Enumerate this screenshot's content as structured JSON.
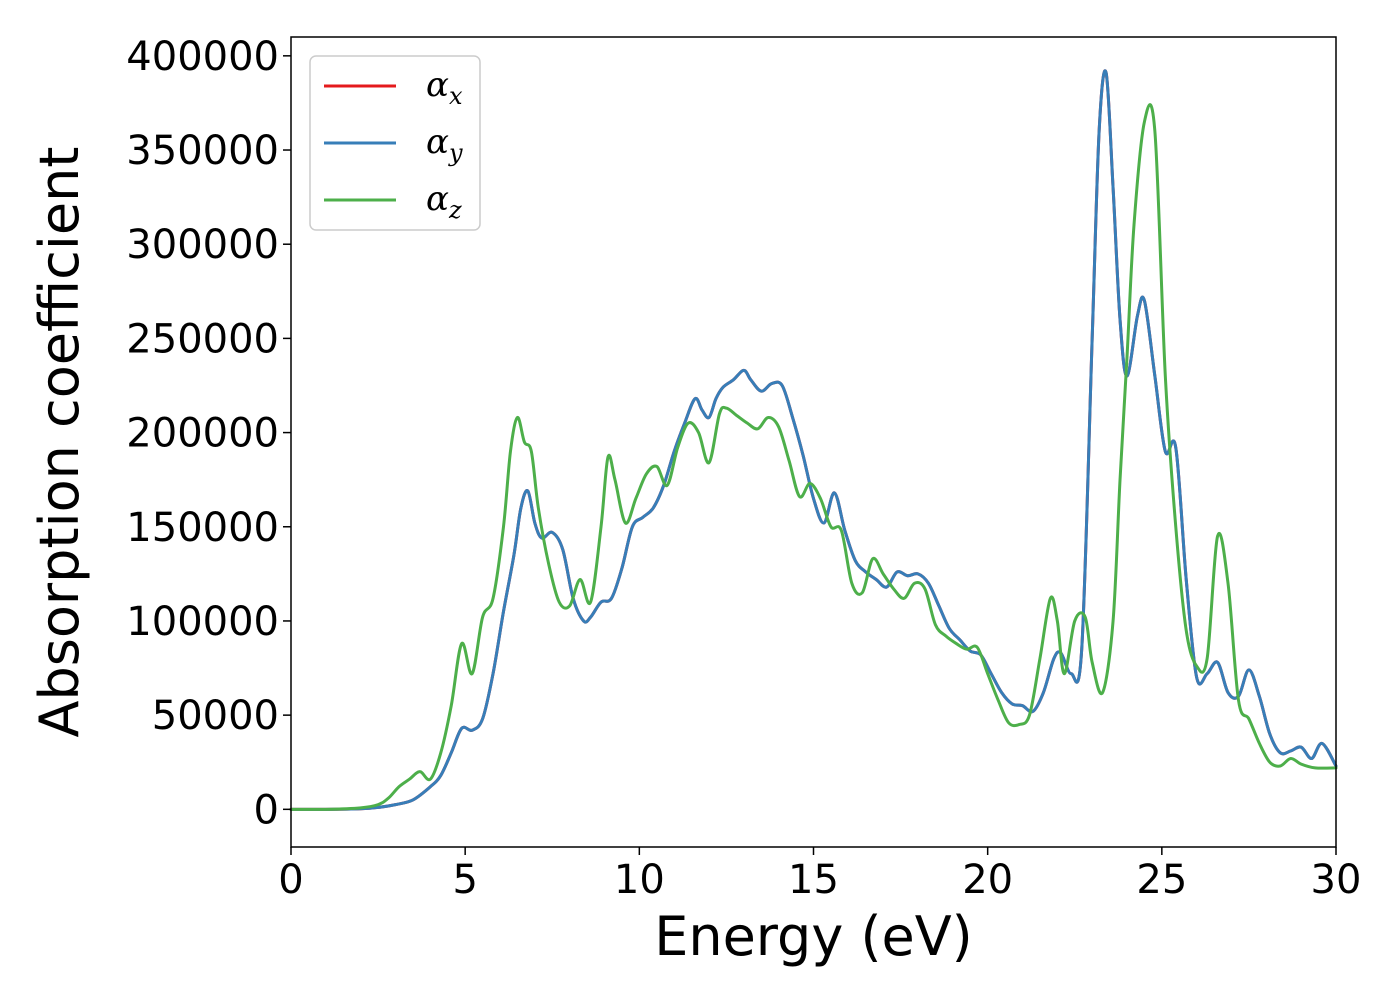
{
  "chart_data": {
    "type": "line",
    "title": "",
    "xlabel": "Energy (eV)",
    "ylabel": "Absorption coefficient",
    "xlim": [
      0,
      30
    ],
    "ylim": [
      -20000,
      410000
    ],
    "xticks": [
      0,
      5,
      10,
      15,
      20,
      25,
      30
    ],
    "yticks": [
      0,
      50000,
      100000,
      150000,
      200000,
      250000,
      300000,
      350000,
      400000
    ],
    "grid": false,
    "legend_position": "top-left",
    "series": [
      {
        "name": "α",
        "subscript": "x",
        "color": "#e41a1c",
        "x": [
          0,
          1,
          2,
          2.5,
          3,
          3.5,
          4,
          4.3,
          4.6,
          4.9,
          5.2,
          5.5,
          5.8,
          6.1,
          6.4,
          6.6,
          6.8,
          7.0,
          7.2,
          7.5,
          7.8,
          8.1,
          8.4,
          8.6,
          8.9,
          9.2,
          9.5,
          9.8,
          10.1,
          10.4,
          10.7,
          11.0,
          11.3,
          11.6,
          11.8,
          12.0,
          12.2,
          12.4,
          12.7,
          13.0,
          13.2,
          13.5,
          13.8,
          14.1,
          14.4,
          14.7,
          15.0,
          15.3,
          15.6,
          15.9,
          16.2,
          16.5,
          16.8,
          17.1,
          17.4,
          17.7,
          18.0,
          18.3,
          18.6,
          18.9,
          19.2,
          19.5,
          19.8,
          20.1,
          20.4,
          20.7,
          21.0,
          21.3,
          21.6,
          21.9,
          22.1,
          22.4,
          22.7,
          23.0,
          23.2,
          23.4,
          23.6,
          23.8,
          24.0,
          24.3,
          24.5,
          24.8,
          25.1,
          25.4,
          25.7,
          26.0,
          26.3,
          26.6,
          26.9,
          27.2,
          27.5,
          27.8,
          28.1,
          28.4,
          28.7,
          29.0,
          29.3,
          29.6,
          30.0
        ],
        "y": [
          0,
          0,
          300,
          1000,
          2500,
          5000,
          12000,
          18000,
          30000,
          43000,
          42000,
          48000,
          72000,
          105000,
          135000,
          160000,
          169000,
          152000,
          144000,
          147000,
          138000,
          112000,
          100000,
          102000,
          110000,
          112000,
          128000,
          150000,
          155000,
          160000,
          172000,
          190000,
          205000,
          218000,
          212000,
          208000,
          218000,
          224000,
          228000,
          233000,
          228000,
          222000,
          226000,
          225000,
          208000,
          188000,
          165000,
          152000,
          168000,
          148000,
          132000,
          126000,
          122000,
          118000,
          126000,
          124000,
          125000,
          120000,
          108000,
          96000,
          90000,
          84000,
          82000,
          72000,
          62000,
          56000,
          55000,
          52000,
          62000,
          80000,
          83000,
          72000,
          85000,
          250000,
          360000,
          391000,
          330000,
          260000,
          230000,
          262000,
          270000,
          230000,
          190000,
          192000,
          122000,
          70000,
          72000,
          78000,
          62000,
          60000,
          74000,
          60000,
          40000,
          30000,
          31000,
          33000,
          27000,
          35000,
          23000
        ]
      },
      {
        "name": "α",
        "subscript": "y",
        "color": "#377eb8",
        "x": [
          0,
          1,
          2,
          2.5,
          3,
          3.5,
          4,
          4.3,
          4.6,
          4.9,
          5.2,
          5.5,
          5.8,
          6.1,
          6.4,
          6.6,
          6.8,
          7.0,
          7.2,
          7.5,
          7.8,
          8.1,
          8.4,
          8.6,
          8.9,
          9.2,
          9.5,
          9.8,
          10.1,
          10.4,
          10.7,
          11.0,
          11.3,
          11.6,
          11.8,
          12.0,
          12.2,
          12.4,
          12.7,
          13.0,
          13.2,
          13.5,
          13.8,
          14.1,
          14.4,
          14.7,
          15.0,
          15.3,
          15.6,
          15.9,
          16.2,
          16.5,
          16.8,
          17.1,
          17.4,
          17.7,
          18.0,
          18.3,
          18.6,
          18.9,
          19.2,
          19.5,
          19.8,
          20.1,
          20.4,
          20.7,
          21.0,
          21.3,
          21.6,
          21.9,
          22.1,
          22.4,
          22.7,
          23.0,
          23.2,
          23.4,
          23.6,
          23.8,
          24.0,
          24.3,
          24.5,
          24.8,
          25.1,
          25.4,
          25.7,
          26.0,
          26.3,
          26.6,
          26.9,
          27.2,
          27.5,
          27.8,
          28.1,
          28.4,
          28.7,
          29.0,
          29.3,
          29.6,
          30.0
        ],
        "y": [
          0,
          0,
          300,
          1000,
          2500,
          5000,
          12000,
          18000,
          30000,
          43000,
          42000,
          48000,
          72000,
          105000,
          135000,
          160000,
          169000,
          152000,
          144000,
          147000,
          138000,
          112000,
          100000,
          102000,
          110000,
          112000,
          128000,
          150000,
          155000,
          160000,
          172000,
          190000,
          205000,
          218000,
          212000,
          208000,
          218000,
          224000,
          228000,
          233000,
          228000,
          222000,
          226000,
          225000,
          208000,
          188000,
          165000,
          152000,
          168000,
          148000,
          132000,
          126000,
          122000,
          118000,
          126000,
          124000,
          125000,
          120000,
          108000,
          96000,
          90000,
          84000,
          82000,
          72000,
          62000,
          56000,
          55000,
          52000,
          62000,
          80000,
          83000,
          72000,
          85000,
          250000,
          360000,
          391000,
          330000,
          260000,
          230000,
          262000,
          270000,
          230000,
          190000,
          192000,
          122000,
          70000,
          72000,
          78000,
          62000,
          60000,
          74000,
          60000,
          40000,
          30000,
          31000,
          33000,
          27000,
          35000,
          23000
        ]
      },
      {
        "name": "α",
        "subscript": "z",
        "color": "#4daf4a",
        "x": [
          0,
          1,
          2,
          2.5,
          2.8,
          3.1,
          3.4,
          3.7,
          4.0,
          4.3,
          4.6,
          4.9,
          5.2,
          5.5,
          5.8,
          6.1,
          6.3,
          6.5,
          6.7,
          6.9,
          7.1,
          7.4,
          7.7,
          8.0,
          8.3,
          8.6,
          8.9,
          9.1,
          9.3,
          9.6,
          9.9,
          10.2,
          10.5,
          10.8,
          11.1,
          11.4,
          11.7,
          12.0,
          12.3,
          12.5,
          12.8,
          13.1,
          13.4,
          13.7,
          14.0,
          14.3,
          14.6,
          14.9,
          15.2,
          15.5,
          15.8,
          16.1,
          16.4,
          16.7,
          17.0,
          17.3,
          17.6,
          17.9,
          18.2,
          18.5,
          18.8,
          19.1,
          19.4,
          19.7,
          20.0,
          20.3,
          20.6,
          20.9,
          21.2,
          21.5,
          21.8,
          22.0,
          22.2,
          22.5,
          22.8,
          23.0,
          23.3,
          23.6,
          23.8,
          24.0,
          24.2,
          24.5,
          24.8,
          25.1,
          25.4,
          25.7,
          26.0,
          26.3,
          26.6,
          26.9,
          27.2,
          27.5,
          27.8,
          28.1,
          28.4,
          28.7,
          29.0,
          29.4,
          30.0
        ],
        "y": [
          0,
          0,
          800,
          2500,
          6000,
          12000,
          16000,
          20000,
          16000,
          30000,
          55000,
          88000,
          72000,
          102000,
          112000,
          150000,
          190000,
          208000,
          195000,
          190000,
          160000,
          130000,
          110000,
          108000,
          122000,
          110000,
          150000,
          187000,
          175000,
          152000,
          165000,
          178000,
          182000,
          172000,
          192000,
          205000,
          200000,
          184000,
          210000,
          213000,
          209000,
          205000,
          202000,
          208000,
          203000,
          185000,
          166000,
          173000,
          165000,
          150000,
          148000,
          120000,
          115000,
          133000,
          125000,
          117000,
          112000,
          120000,
          117000,
          98000,
          92000,
          88000,
          85000,
          86000,
          72000,
          58000,
          46000,
          45000,
          50000,
          80000,
          112000,
          100000,
          72000,
          100000,
          102000,
          78000,
          62000,
          100000,
          175000,
          240000,
          310000,
          365000,
          360000,
          230000,
          150000,
          95000,
          76000,
          80000,
          145000,
          120000,
          58000,
          48000,
          35000,
          25000,
          23000,
          27000,
          24000,
          22000,
          22000
        ]
      }
    ]
  }
}
